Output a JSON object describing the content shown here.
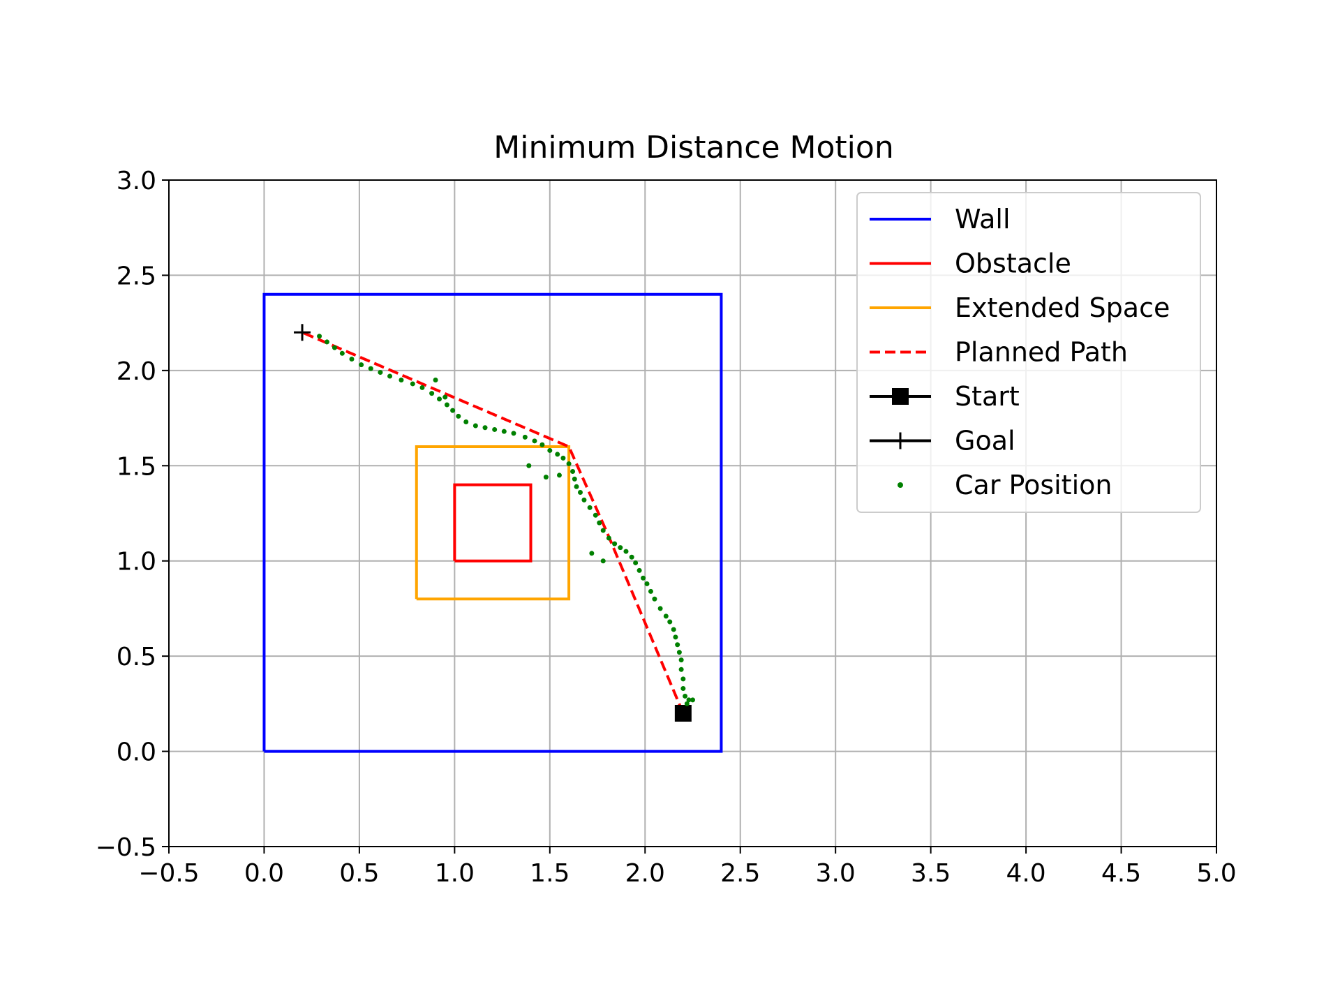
{
  "chart_data": {
    "type": "line",
    "title": "Minimum Distance Motion",
    "xlabel": "",
    "ylabel": "",
    "xlim": [
      -0.5,
      5.0
    ],
    "ylim": [
      -0.5,
      3.0
    ],
    "x_ticks": [
      -0.5,
      0.0,
      0.5,
      1.0,
      1.5,
      2.0,
      2.5,
      3.0,
      3.5,
      4.0,
      4.5,
      5.0
    ],
    "y_ticks": [
      -0.5,
      0.0,
      0.5,
      1.0,
      1.5,
      2.0,
      2.5,
      3.0
    ],
    "x_tick_labels": [
      "−0.5",
      "0.0",
      "0.5",
      "1.0",
      "1.5",
      "2.0",
      "2.5",
      "3.0",
      "3.5",
      "4.0",
      "4.5",
      "5.0"
    ],
    "y_tick_labels": [
      "−0.5",
      "0.0",
      "0.5",
      "1.0",
      "1.5",
      "2.0",
      "2.5",
      "3.0"
    ],
    "grid": true,
    "legend_position": "top-right",
    "legend": [
      {
        "label": "Wall",
        "kind": "line",
        "color": "#0000ff"
      },
      {
        "label": "Obstacle",
        "kind": "line",
        "color": "#ff0000"
      },
      {
        "label": "Extended Space",
        "kind": "line",
        "color": "#ffa500"
      },
      {
        "label": "Planned Path",
        "kind": "dashed",
        "color": "#ff0000"
      },
      {
        "label": "Start",
        "kind": "square",
        "color": "#000000"
      },
      {
        "label": "Goal",
        "kind": "plus",
        "color": "#000000"
      },
      {
        "label": "Car Position",
        "kind": "dot",
        "color": "#008000"
      }
    ],
    "series": [
      {
        "name": "Wall",
        "color": "#0000ff",
        "points": [
          [
            0,
            0
          ],
          [
            2.4,
            0
          ],
          [
            2.4,
            2.4
          ],
          [
            0,
            2.4
          ],
          [
            0,
            0
          ]
        ]
      },
      {
        "name": "Obstacle",
        "color": "#ff0000",
        "points": [
          [
            1.0,
            1.0
          ],
          [
            1.4,
            1.0
          ],
          [
            1.4,
            1.4
          ],
          [
            1.0,
            1.4
          ],
          [
            1.0,
            1.0
          ]
        ]
      },
      {
        "name": "Extended Space",
        "color": "#ffa500",
        "points": [
          [
            0.8,
            0.8
          ],
          [
            1.6,
            0.8
          ],
          [
            1.6,
            1.6
          ],
          [
            0.8,
            1.6
          ],
          [
            0.8,
            0.8
          ]
        ]
      },
      {
        "name": "Planned Path",
        "color": "#ff0000",
        "dashed": true,
        "points": [
          [
            2.2,
            0.2
          ],
          [
            1.8,
            1.15
          ],
          [
            1.6,
            1.6
          ],
          [
            0.2,
            2.2
          ]
        ]
      },
      {
        "name": "Start",
        "color": "#000000",
        "marker": "square",
        "points": [
          [
            2.2,
            0.2
          ]
        ]
      },
      {
        "name": "Goal",
        "color": "#000000",
        "marker": "plus",
        "points": [
          [
            0.2,
            2.2
          ]
        ]
      },
      {
        "name": "Car Position",
        "color": "#008000",
        "marker": "dot",
        "points": [
          [
            2.22,
            0.25
          ],
          [
            2.21,
            0.29
          ],
          [
            2.23,
            0.27
          ],
          [
            2.2,
            0.33
          ],
          [
            2.2,
            0.38
          ],
          [
            2.19,
            0.43
          ],
          [
            2.19,
            0.48
          ],
          [
            2.18,
            0.52
          ],
          [
            2.17,
            0.56
          ],
          [
            2.16,
            0.6
          ],
          [
            2.15,
            0.64
          ],
          [
            2.13,
            0.68
          ],
          [
            2.11,
            0.71
          ],
          [
            2.08,
            0.75
          ],
          [
            2.05,
            0.8
          ],
          [
            2.03,
            0.84
          ],
          [
            2.01,
            0.88
          ],
          [
            1.99,
            0.91
          ],
          [
            1.97,
            0.95
          ],
          [
            1.95,
            0.99
          ],
          [
            1.93,
            1.02
          ],
          [
            1.9,
            1.05
          ],
          [
            1.87,
            1.07
          ],
          [
            1.84,
            1.09
          ],
          [
            1.81,
            1.12
          ],
          [
            1.78,
            1.16
          ],
          [
            1.76,
            1.2
          ],
          [
            1.74,
            1.24
          ],
          [
            1.71,
            1.28
          ],
          [
            1.68,
            1.32
          ],
          [
            1.66,
            1.36
          ],
          [
            1.64,
            1.39
          ],
          [
            1.63,
            1.43
          ],
          [
            1.62,
            1.47
          ],
          [
            1.6,
            1.51
          ],
          [
            1.57,
            1.54
          ],
          [
            1.54,
            1.56
          ],
          [
            1.5,
            1.58
          ],
          [
            1.46,
            1.61
          ],
          [
            1.42,
            1.63
          ],
          [
            1.37,
            1.65
          ],
          [
            1.31,
            1.67
          ],
          [
            1.26,
            1.68
          ],
          [
            1.21,
            1.69
          ],
          [
            1.16,
            1.7
          ],
          [
            1.11,
            1.71
          ],
          [
            1.06,
            1.73
          ],
          [
            1.02,
            1.76
          ],
          [
            0.99,
            1.79
          ],
          [
            0.96,
            1.82
          ],
          [
            0.92,
            1.85
          ],
          [
            0.88,
            1.88
          ],
          [
            0.83,
            1.91
          ],
          [
            0.78,
            1.93
          ],
          [
            0.72,
            1.95
          ],
          [
            0.66,
            1.97
          ],
          [
            0.61,
            1.99
          ],
          [
            0.56,
            2.01
          ],
          [
            0.51,
            2.03
          ],
          [
            0.46,
            2.06
          ],
          [
            0.41,
            2.09
          ],
          [
            0.37,
            2.12
          ],
          [
            0.33,
            2.15
          ],
          [
            0.29,
            2.18
          ],
          [
            0.9,
            1.95
          ],
          [
            0.95,
            1.86
          ],
          [
            1.48,
            1.44
          ],
          [
            1.39,
            1.5
          ],
          [
            1.72,
            1.04
          ],
          [
            1.78,
            1.0
          ],
          [
            2.25,
            0.27
          ],
          [
            1.55,
            1.45
          ]
        ]
      }
    ]
  }
}
